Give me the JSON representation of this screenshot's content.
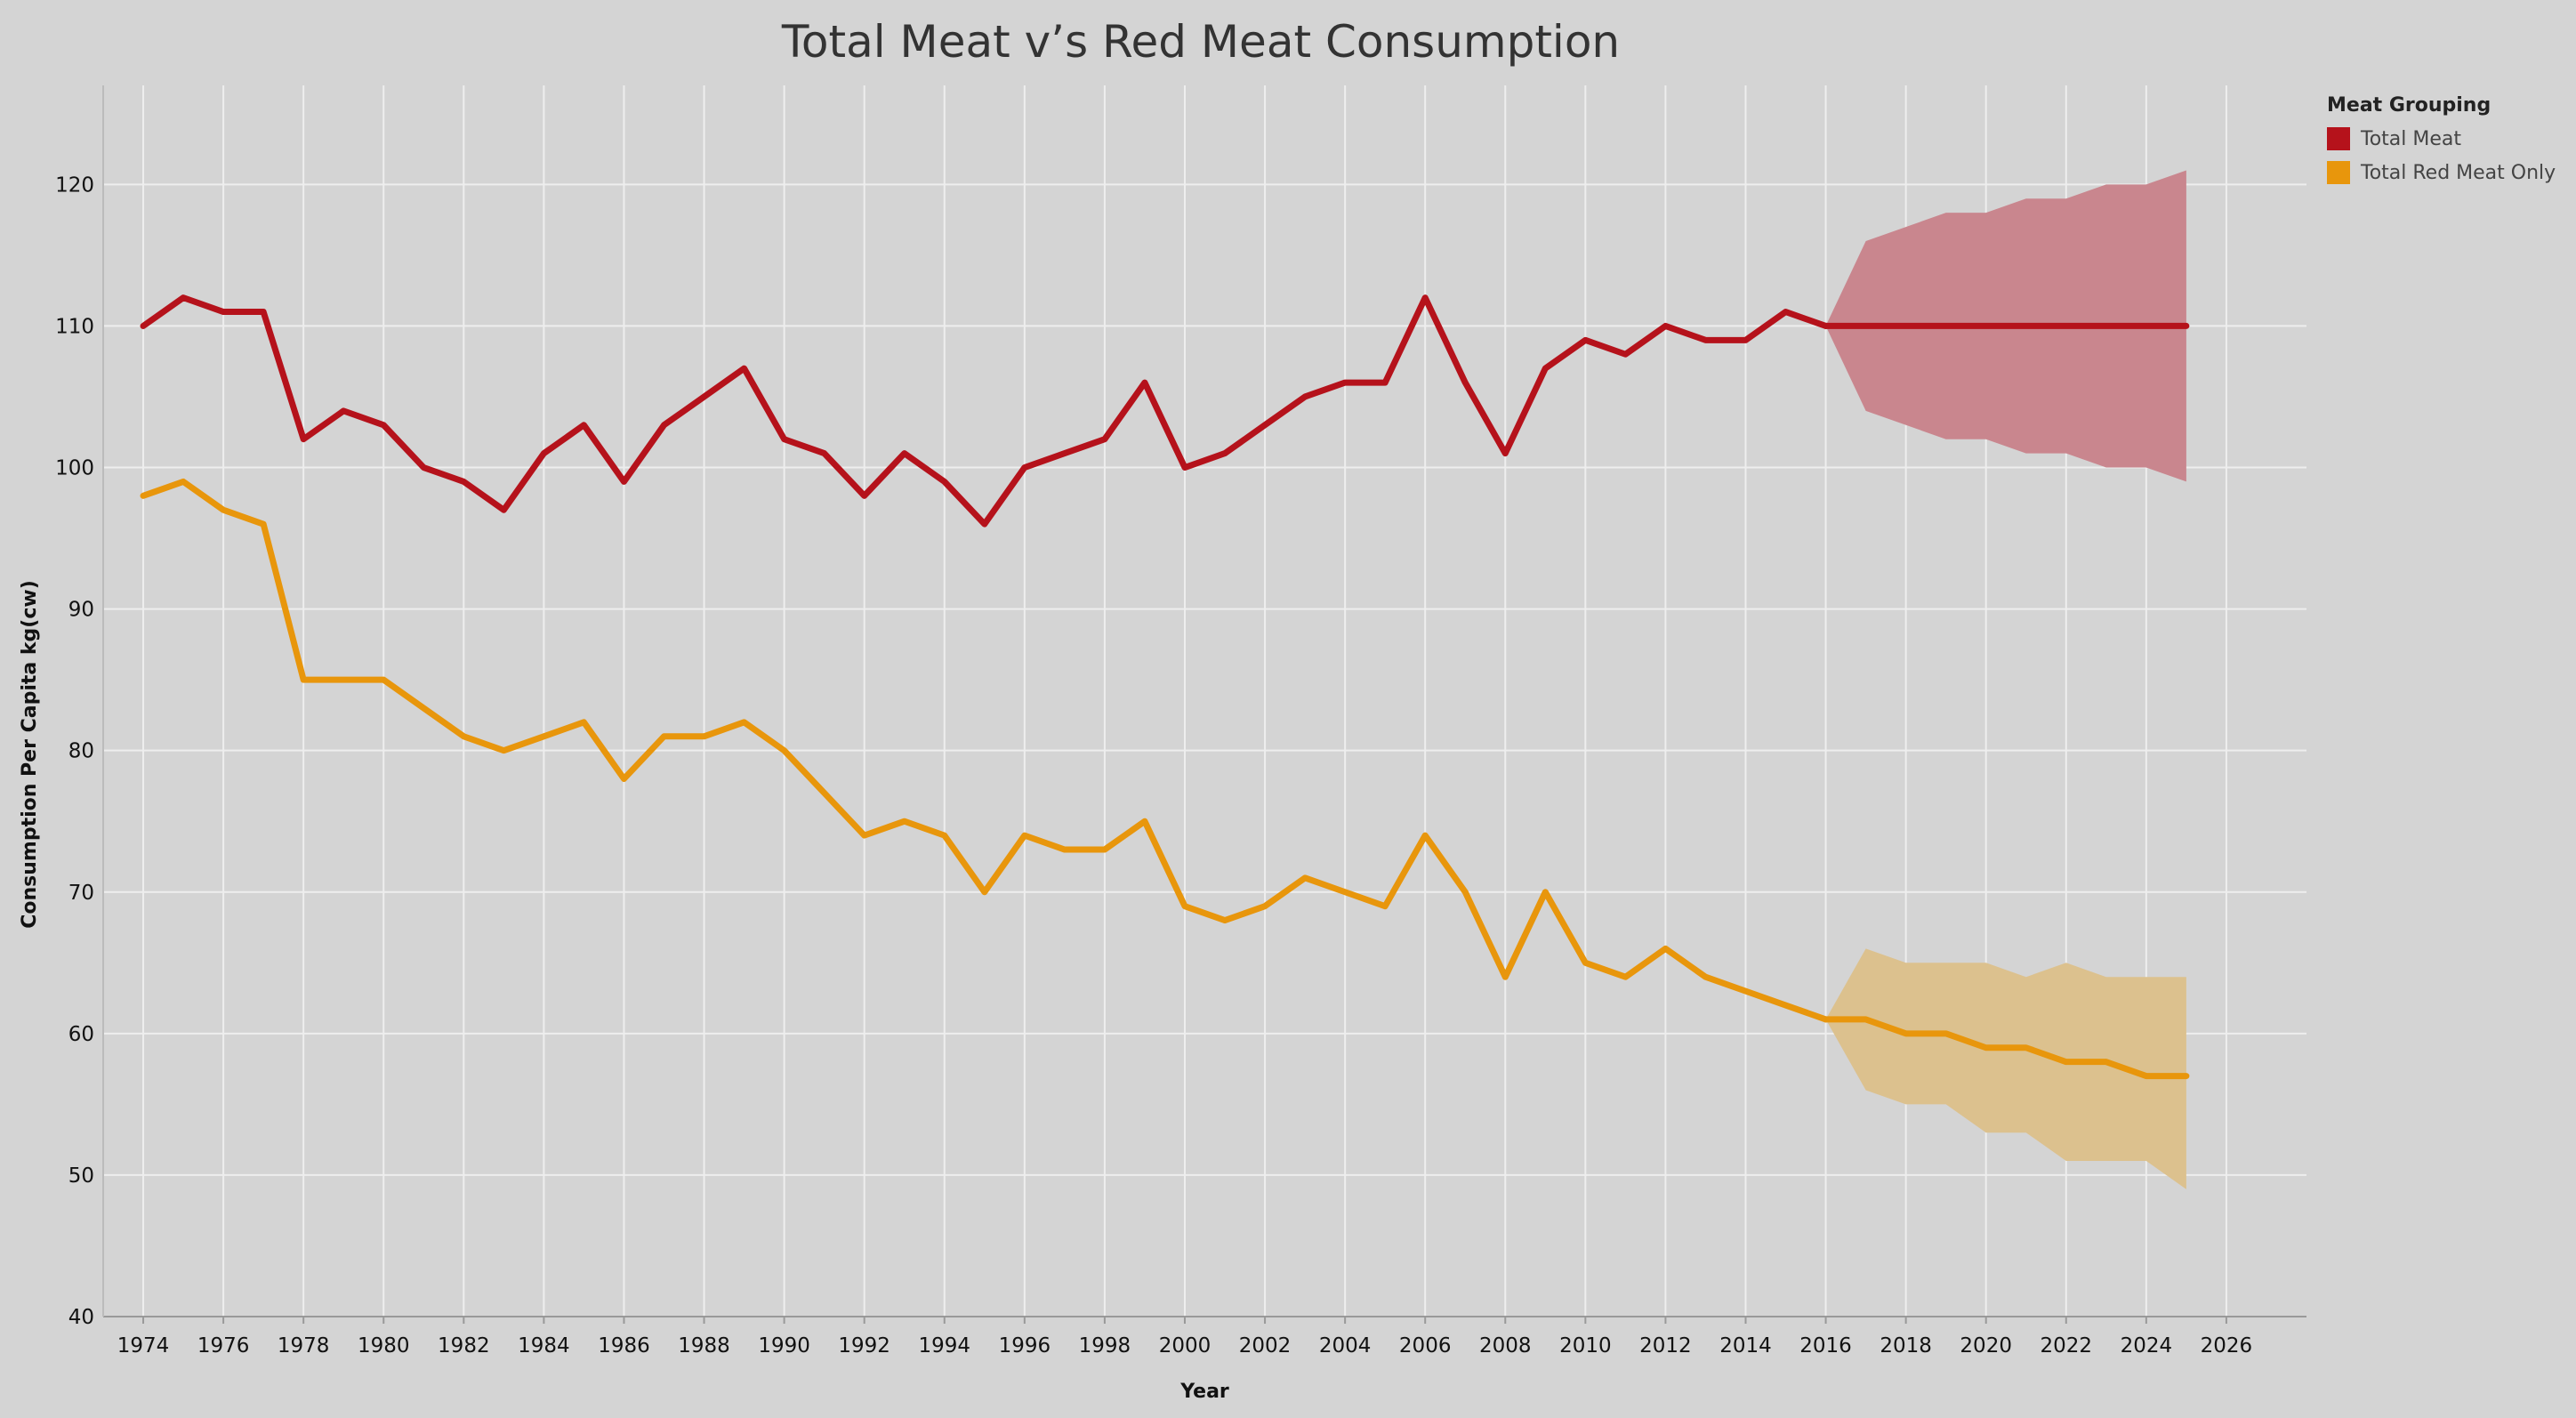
{
  "chart_data": {
    "type": "line",
    "title": "Total Meat v’s Red Meat Consumption",
    "xlabel": "Year",
    "ylabel": "Consumption Per Capita kg(cw)",
    "xlim": [
      1973,
      2028
    ],
    "ylim": [
      40,
      127
    ],
    "x_ticks": [
      1974,
      1976,
      1978,
      1980,
      1982,
      1984,
      1986,
      1988,
      1990,
      1992,
      1994,
      1996,
      1998,
      2000,
      2002,
      2004,
      2006,
      2008,
      2010,
      2012,
      2014,
      2016,
      2018,
      2020,
      2022,
      2024,
      2026
    ],
    "y_ticks": [
      40,
      50,
      60,
      70,
      80,
      90,
      100,
      110,
      120
    ],
    "grid": true,
    "legend": {
      "title": "Meat Grouping",
      "position": "top-right"
    },
    "series": [
      {
        "name": "Total Meat",
        "color": "#b5121b",
        "band_color": "#c9868e",
        "x": [
          1974,
          1975,
          1976,
          1977,
          1978,
          1979,
          1980,
          1981,
          1982,
          1983,
          1984,
          1985,
          1986,
          1987,
          1988,
          1989,
          1990,
          1991,
          1992,
          1993,
          1994,
          1995,
          1996,
          1997,
          1998,
          1999,
          2000,
          2001,
          2002,
          2003,
          2004,
          2005,
          2006,
          2007,
          2008,
          2009,
          2010,
          2011,
          2012,
          2013,
          2014,
          2015,
          2016
        ],
        "values": [
          110,
          112,
          111,
          111,
          102,
          104,
          103,
          100,
          99,
          97,
          101,
          103,
          99,
          103,
          105,
          107,
          102,
          101,
          98,
          101,
          99,
          96,
          100,
          101,
          102,
          106,
          100,
          101,
          103,
          105,
          106,
          106,
          112,
          106,
          101,
          107,
          109,
          108,
          110,
          109,
          109,
          111,
          110
        ],
        "forecast": {
          "x": [
            2016,
            2017,
            2018,
            2019,
            2020,
            2021,
            2022,
            2023,
            2024,
            2025
          ],
          "values": [
            110,
            110,
            110,
            110,
            110,
            110,
            110,
            110,
            110,
            110
          ],
          "upper": [
            110,
            116,
            117,
            118,
            118,
            119,
            119,
            120,
            120,
            121
          ],
          "lower": [
            110,
            104,
            103,
            102,
            102,
            101,
            101,
            100,
            100,
            99
          ]
        }
      },
      {
        "name": "Total Red Meat Only",
        "color": "#e8960c",
        "band_color": "#dcc18e",
        "x": [
          1974,
          1975,
          1976,
          1977,
          1978,
          1979,
          1980,
          1981,
          1982,
          1983,
          1984,
          1985,
          1986,
          1987,
          1988,
          1989,
          1990,
          1991,
          1992,
          1993,
          1994,
          1995,
          1996,
          1997,
          1998,
          1999,
          2000,
          2001,
          2002,
          2003,
          2004,
          2005,
          2006,
          2007,
          2008,
          2009,
          2010,
          2011,
          2012,
          2013,
          2014,
          2015,
          2016
        ],
        "values": [
          98,
          99,
          97,
          96,
          85,
          85,
          85,
          83,
          81,
          80,
          81,
          82,
          78,
          81,
          81,
          82,
          80,
          77,
          74,
          75,
          74,
          70,
          74,
          73,
          73,
          75,
          69,
          68,
          69,
          71,
          70,
          69,
          74,
          70,
          64,
          70,
          65,
          64,
          66,
          64,
          63,
          62,
          61
        ],
        "forecast": {
          "x": [
            2016,
            2017,
            2018,
            2019,
            2020,
            2021,
            2022,
            2023,
            2024,
            2025
          ],
          "values": [
            61,
            61,
            60,
            60,
            59,
            59,
            58,
            58,
            57,
            57
          ],
          "upper": [
            61,
            66,
            65,
            65,
            65,
            64,
            65,
            64,
            64,
            64
          ],
          "lower": [
            61,
            56,
            55,
            55,
            53,
            53,
            51,
            51,
            51,
            49
          ]
        }
      }
    ]
  }
}
